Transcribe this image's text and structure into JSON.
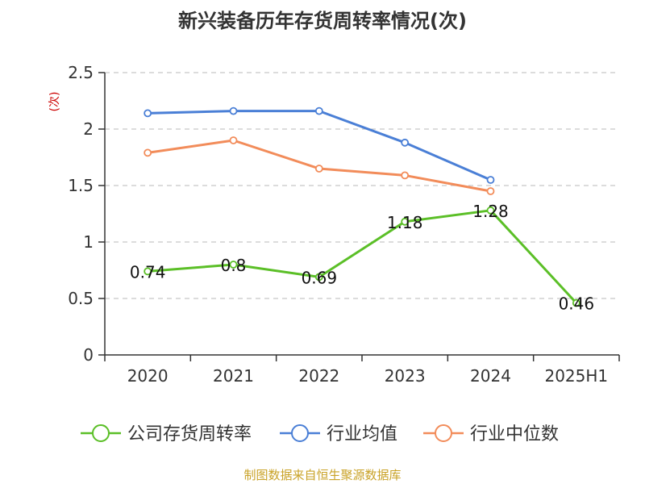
{
  "title": "新兴装备历年存货周转率情况(次)",
  "unit_label": "(次)",
  "source": "制图数据来自恒生聚源数据库",
  "chart_data": {
    "type": "line",
    "title": "新兴装备历年存货周转率情况(次)",
    "ylabel": "(次)",
    "xlabel": "",
    "categories": [
      "2020",
      "2021",
      "2022",
      "2023",
      "2024",
      "2025H1"
    ],
    "ylim": [
      0,
      2.5
    ],
    "yticks": [
      0,
      0.5,
      1,
      1.5,
      2,
      2.5
    ],
    "ytick_labels": [
      "0",
      "0.5",
      "1",
      "1.5",
      "2",
      "2.5"
    ],
    "grid": "horizontal dashed",
    "legend_position": "bottom",
    "series": [
      {
        "name": "公司存货周转率",
        "color": "#5bbf27",
        "values": [
          0.74,
          0.8,
          0.69,
          1.18,
          1.28,
          0.46
        ],
        "labels": [
          "0.74",
          "0.8",
          "0.69",
          "1.18",
          "1.28",
          "0.46"
        ],
        "show_labels": true
      },
      {
        "name": "行业均值",
        "color": "#4a7fd6",
        "values": [
          2.14,
          2.16,
          2.16,
          1.88,
          1.55,
          null
        ],
        "show_labels": false
      },
      {
        "name": "行业中位数",
        "color": "#f28c5a",
        "values": [
          1.79,
          1.9,
          1.65,
          1.59,
          1.45,
          null
        ],
        "show_labels": false
      }
    ]
  }
}
